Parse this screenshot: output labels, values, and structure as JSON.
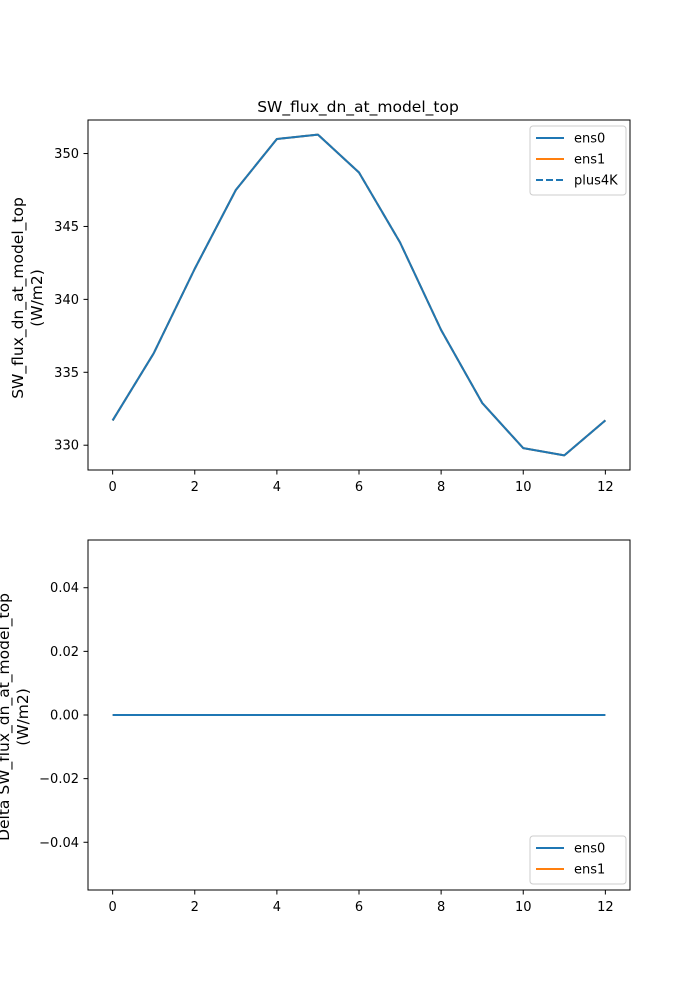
{
  "colors": {
    "ens0": "#1f77b4",
    "ens1": "#ff7f0e",
    "plus4K": "#1f77b4",
    "axis": "#000000",
    "background": "#ffffff",
    "legend_border": "#cccccc"
  },
  "chart_data": [
    {
      "type": "line",
      "title": "SW_flux_dn_at_model_top",
      "ylabel_line1": "SW_flux_dn_at_model_top",
      "ylabel_line2": "(W/m2)",
      "xlabel": "",
      "xlim": [
        -0.6,
        12.6
      ],
      "ylim": [
        328.3,
        352.3
      ],
      "x_ticks": [
        0,
        2,
        4,
        6,
        8,
        10,
        12
      ],
      "x_tick_labels": [
        "0",
        "2",
        "4",
        "6",
        "8",
        "10",
        "12"
      ],
      "y_ticks": [
        330,
        335,
        340,
        345,
        350
      ],
      "y_tick_labels": [
        "330",
        "335",
        "340",
        "345",
        "350"
      ],
      "legend_position": "top-right",
      "x": [
        0,
        1,
        2,
        3,
        4,
        5,
        6,
        7,
        8,
        9,
        10,
        11,
        12
      ],
      "series": [
        {
          "name": "ens0",
          "style": "solid",
          "color_key": "ens0",
          "values": [
            331.7,
            336.3,
            342.1,
            347.5,
            351.0,
            351.3,
            348.7,
            343.9,
            337.9,
            332.9,
            329.8,
            329.3,
            331.7
          ]
        },
        {
          "name": "ens1",
          "style": "solid",
          "color_key": "ens1",
          "values": [
            331.7,
            336.3,
            342.1,
            347.5,
            351.0,
            351.3,
            348.7,
            343.9,
            337.9,
            332.9,
            329.8,
            329.3,
            331.7
          ]
        },
        {
          "name": "plus4K",
          "style": "dashed",
          "color_key": "plus4K",
          "values": [
            331.7,
            336.3,
            342.1,
            347.5,
            351.0,
            351.3,
            348.7,
            343.9,
            337.9,
            332.9,
            329.8,
            329.3,
            331.7
          ]
        }
      ],
      "draw_order": [
        "plus4K",
        "ens1",
        "ens0"
      ]
    },
    {
      "type": "line",
      "title": "",
      "ylabel_line1": "Delta SW_flux_dn_at_model_top",
      "ylabel_line2": "(W/m2)",
      "xlabel": "",
      "xlim": [
        -0.6,
        12.6
      ],
      "ylim": [
        -0.055,
        0.055
      ],
      "x_ticks": [
        0,
        2,
        4,
        6,
        8,
        10,
        12
      ],
      "x_tick_labels": [
        "0",
        "2",
        "4",
        "6",
        "8",
        "10",
        "12"
      ],
      "y_ticks": [
        -0.04,
        -0.02,
        0.0,
        0.02,
        0.04
      ],
      "y_tick_labels": [
        "−0.04",
        "−0.02",
        "0.00",
        "0.02",
        "0.04"
      ],
      "legend_position": "bottom-right",
      "x": [
        0,
        1,
        2,
        3,
        4,
        5,
        6,
        7,
        8,
        9,
        10,
        11,
        12
      ],
      "series": [
        {
          "name": "ens0",
          "style": "solid",
          "color_key": "ens0",
          "values": [
            0,
            0,
            0,
            0,
            0,
            0,
            0,
            0,
            0,
            0,
            0,
            0,
            0
          ]
        },
        {
          "name": "ens1",
          "style": "solid",
          "color_key": "ens1",
          "values": [
            0,
            0,
            0,
            0,
            0,
            0,
            0,
            0,
            0,
            0,
            0,
            0,
            0
          ]
        }
      ],
      "draw_order": [
        "ens1",
        "ens0"
      ]
    }
  ]
}
